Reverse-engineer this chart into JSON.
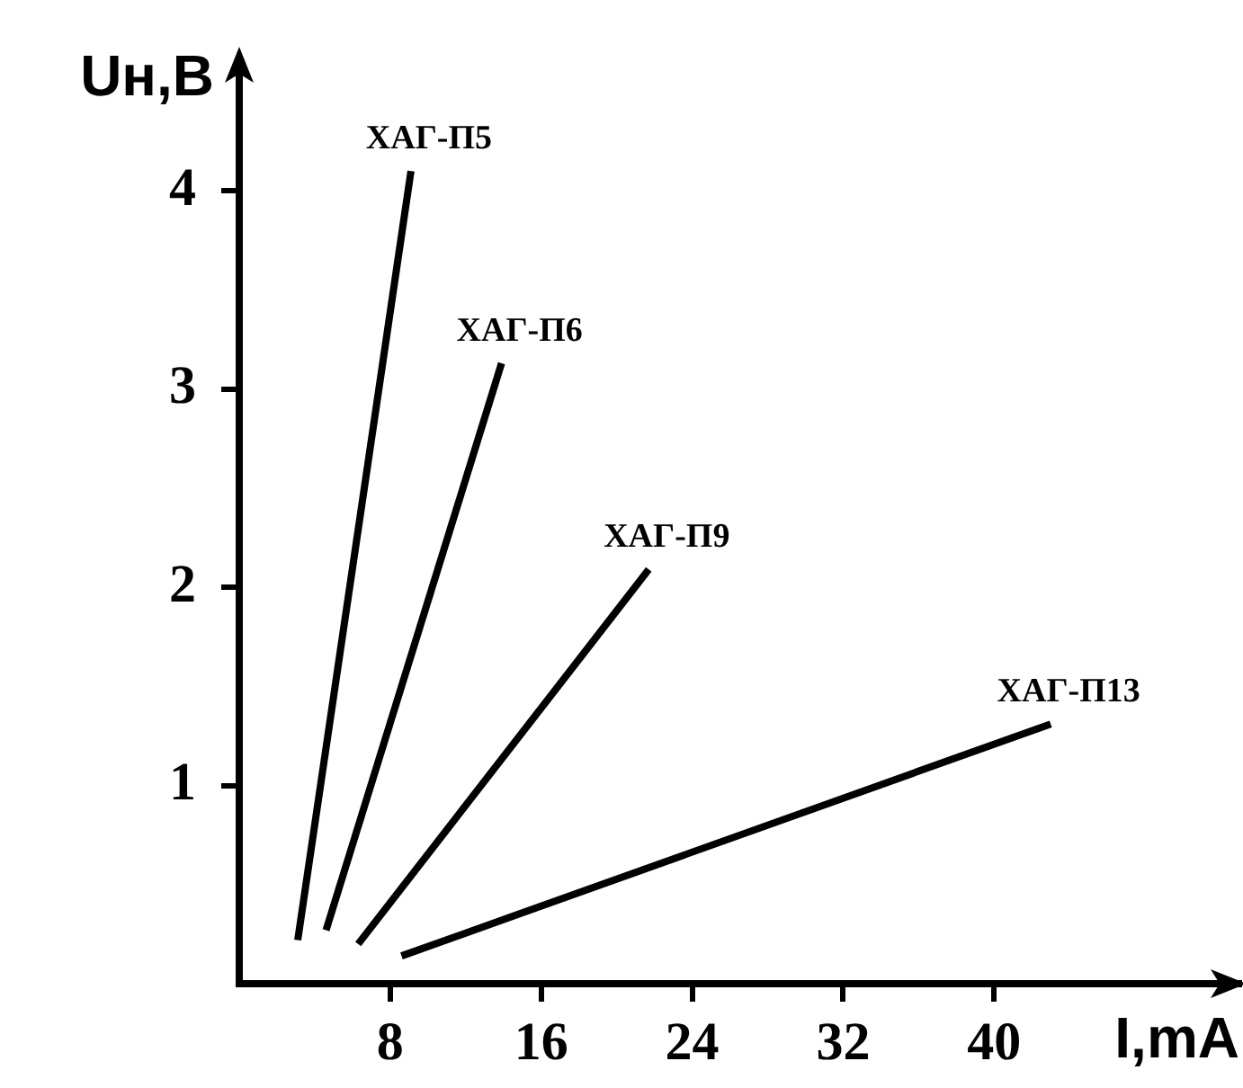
{
  "chart_data": {
    "type": "line",
    "xlabel": "I,mA",
    "ylabel": "Uн,В",
    "xlim": [
      0,
      53
    ],
    "ylim": [
      0,
      4.6
    ],
    "xticks": [
      8,
      16,
      24,
      32,
      40
    ],
    "yticks": [
      1,
      2,
      3,
      4
    ],
    "grid": false,
    "legend": false,
    "marker": "none",
    "line_style": "solid",
    "series": [
      {
        "name": "ХАГ-П5",
        "color": "#000000",
        "x": [
          3.1,
          9.1
        ],
        "values": [
          0.22,
          4.1
        ]
      },
      {
        "name": "ХАГ-П6",
        "color": "#000000",
        "x": [
          4.6,
          13.9
        ],
        "values": [
          0.27,
          3.13
        ]
      },
      {
        "name": "ХАГ-П9",
        "color": "#000000",
        "x": [
          6.3,
          21.7
        ],
        "values": [
          0.2,
          2.09
        ]
      },
      {
        "name": "ХАГ-П13",
        "color": "#000000",
        "x": [
          8.6,
          43
        ],
        "values": [
          0.14,
          1.31
        ]
      }
    ]
  }
}
